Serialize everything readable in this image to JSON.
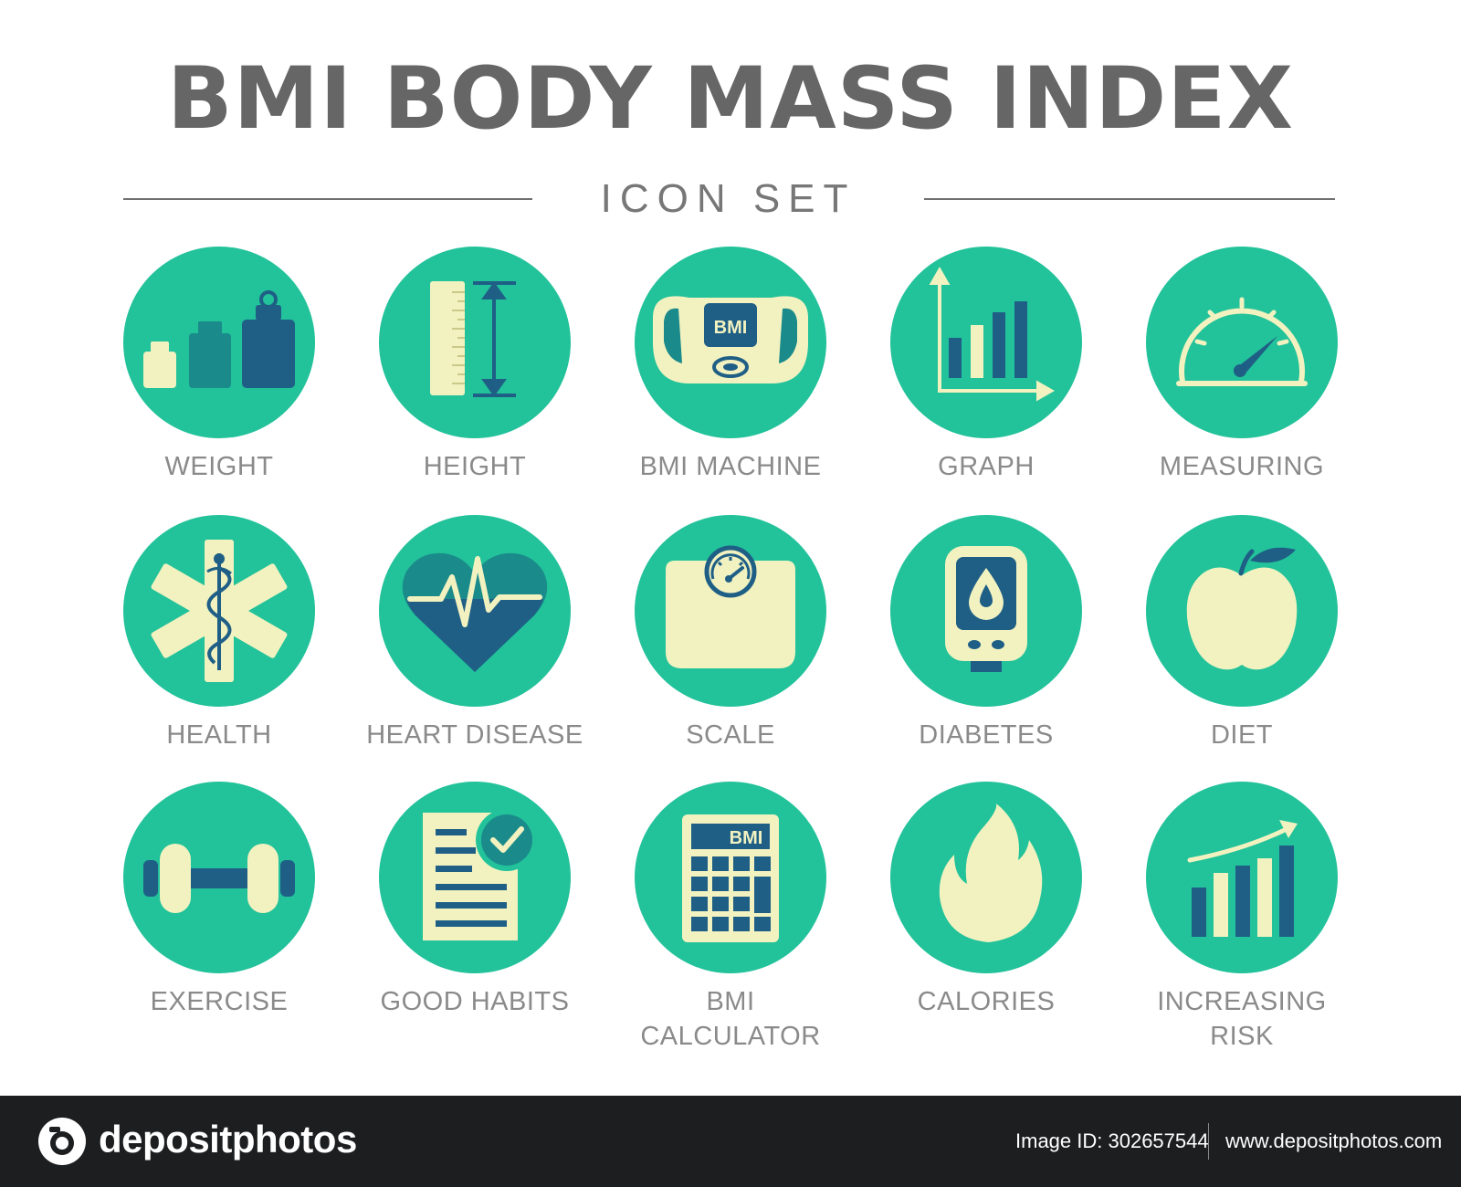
{
  "header": {
    "title": "BMI BODY MASS INDEX",
    "subtitle": "ICON SET"
  },
  "colors": {
    "circle": "#22c29a",
    "cream": "#f2f2c0",
    "navy": "#1f5f86",
    "teal_dark": "#1a8a8a",
    "label": "#8a8a8a"
  },
  "icons": [
    {
      "name": "weight-icon",
      "label": "WEIGHT"
    },
    {
      "name": "height-icon",
      "label": "HEIGHT"
    },
    {
      "name": "bmi-machine-icon",
      "label": "BMI MACHINE",
      "screen_text": "BMI"
    },
    {
      "name": "graph-icon",
      "label": "GRAPH"
    },
    {
      "name": "measuring-icon",
      "label": "MEASURING"
    },
    {
      "name": "health-icon",
      "label": "HEALTH"
    },
    {
      "name": "heart-disease-icon",
      "label": "HEART DISEASE"
    },
    {
      "name": "scale-icon",
      "label": "SCALE"
    },
    {
      "name": "diabetes-icon",
      "label": "DIABETES"
    },
    {
      "name": "diet-icon",
      "label": "DIET"
    },
    {
      "name": "exercise-icon",
      "label": "EXERCISE"
    },
    {
      "name": "good-habits-icon",
      "label": "GOOD HABITS"
    },
    {
      "name": "bmi-calculator-icon",
      "label": "BMI\nCALCULATOR",
      "screen_text": "BMI"
    },
    {
      "name": "calories-icon",
      "label": "CALORIES"
    },
    {
      "name": "increasing-risk-icon",
      "label": "INCREASING\nRISK"
    }
  ],
  "footer": {
    "brand": "depositphotos",
    "image_id": "Image ID: 302657544",
    "site": "www.depositphotos.com"
  }
}
